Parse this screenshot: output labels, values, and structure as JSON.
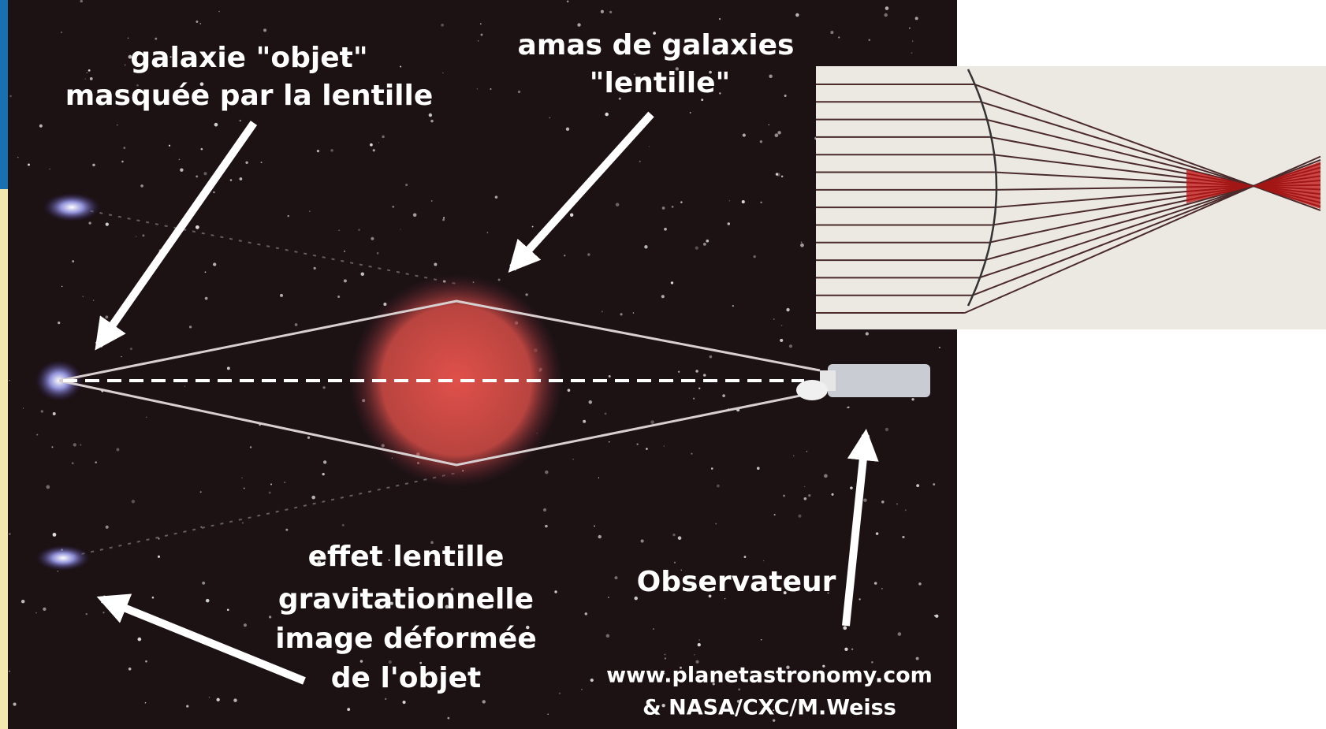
{
  "labels": {
    "source": [
      "galaxie \"objet\"",
      "masquée par la lentille"
    ],
    "lens": [
      "amas de galaxies",
      "\"lentille\""
    ],
    "effect": [
      "effet lentille",
      "gravitationnelle",
      "image déformée",
      "de l'objet"
    ],
    "observer": "Observateur",
    "credit": [
      "www.planetastronomy.com",
      "& NASA/CXC/M.Weiss"
    ]
  }
}
